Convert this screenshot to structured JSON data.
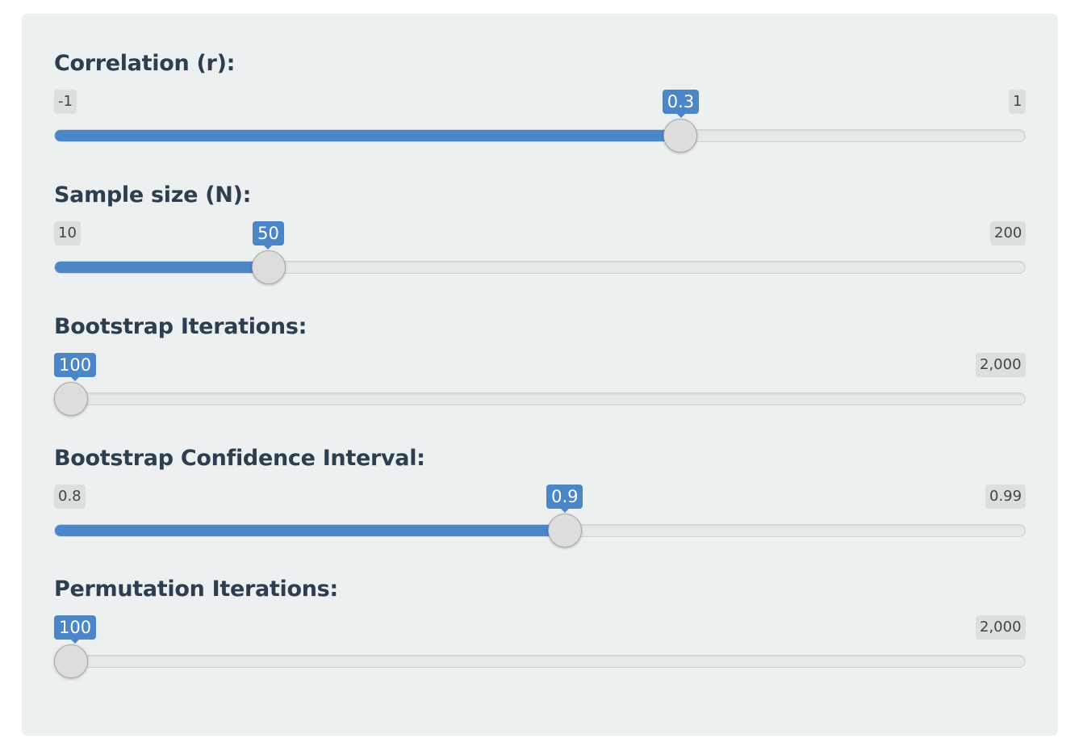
{
  "sliders": [
    {
      "label": "Correlation (r):",
      "min_label": "-1",
      "max_label": "1",
      "value_label": "0.3",
      "min": -1,
      "max": 1,
      "value": 0.3,
      "fill_visible": true
    },
    {
      "label": "Sample size (N):",
      "min_label": "10",
      "max_label": "200",
      "value_label": "50",
      "min": 10,
      "max": 200,
      "value": 50,
      "fill_visible": true
    },
    {
      "label": "Bootstrap Iterations:",
      "min_label": "",
      "max_label": "2,000",
      "value_label": "100",
      "min": 100,
      "max": 2000,
      "value": 100,
      "fill_visible": false
    },
    {
      "label": "Bootstrap Confidence Interval:",
      "min_label": "0.8",
      "max_label": "0.99",
      "value_label": "0.9",
      "min": 0.8,
      "max": 0.99,
      "value": 0.9,
      "fill_visible": true
    },
    {
      "label": "Permutation Iterations:",
      "min_label": "",
      "max_label": "2,000",
      "value_label": "100",
      "min": 100,
      "max": 2000,
      "value": 100,
      "fill_visible": false
    }
  ],
  "colors": {
    "accent": "#4a86c8",
    "panel_bg": "#ecf0f1",
    "label_text": "#2c3e50"
  }
}
